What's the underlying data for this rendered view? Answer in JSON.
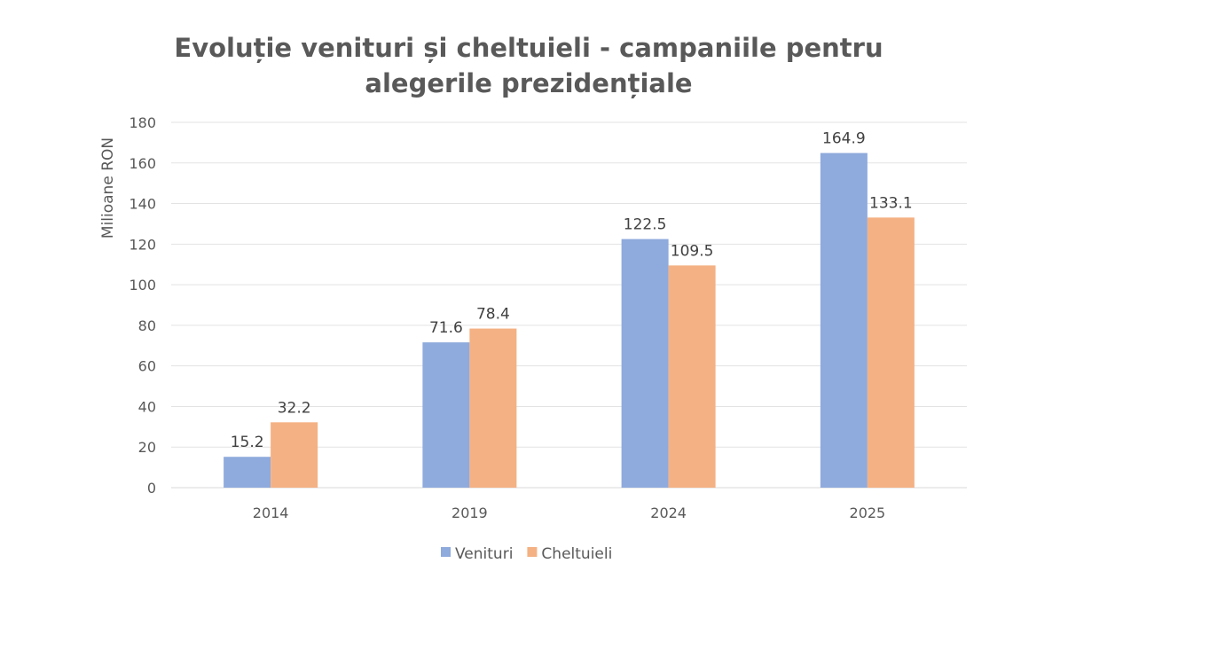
{
  "chart_data": {
    "type": "bar",
    "title_lines": [
      "Evoluție venituri și cheltuieli - campaniile pentru",
      "alegerile prezidențiale"
    ],
    "xlabel": "",
    "ylabel": "Milioane RON",
    "ylim": [
      0,
      180
    ],
    "yticks": [
      0,
      20,
      40,
      60,
      80,
      100,
      120,
      140,
      160,
      180
    ],
    "grid": true,
    "legend_position": "bottom",
    "categories": [
      "2014",
      "2019",
      "2024",
      "2025"
    ],
    "series": [
      {
        "name": "Venituri",
        "color": "#8faadc",
        "values": [
          15.2,
          71.6,
          122.5,
          164.9
        ]
      },
      {
        "name": "Cheltuieli",
        "color": "#f4b183",
        "values": [
          32.2,
          78.4,
          109.5,
          133.1
        ]
      }
    ]
  }
}
